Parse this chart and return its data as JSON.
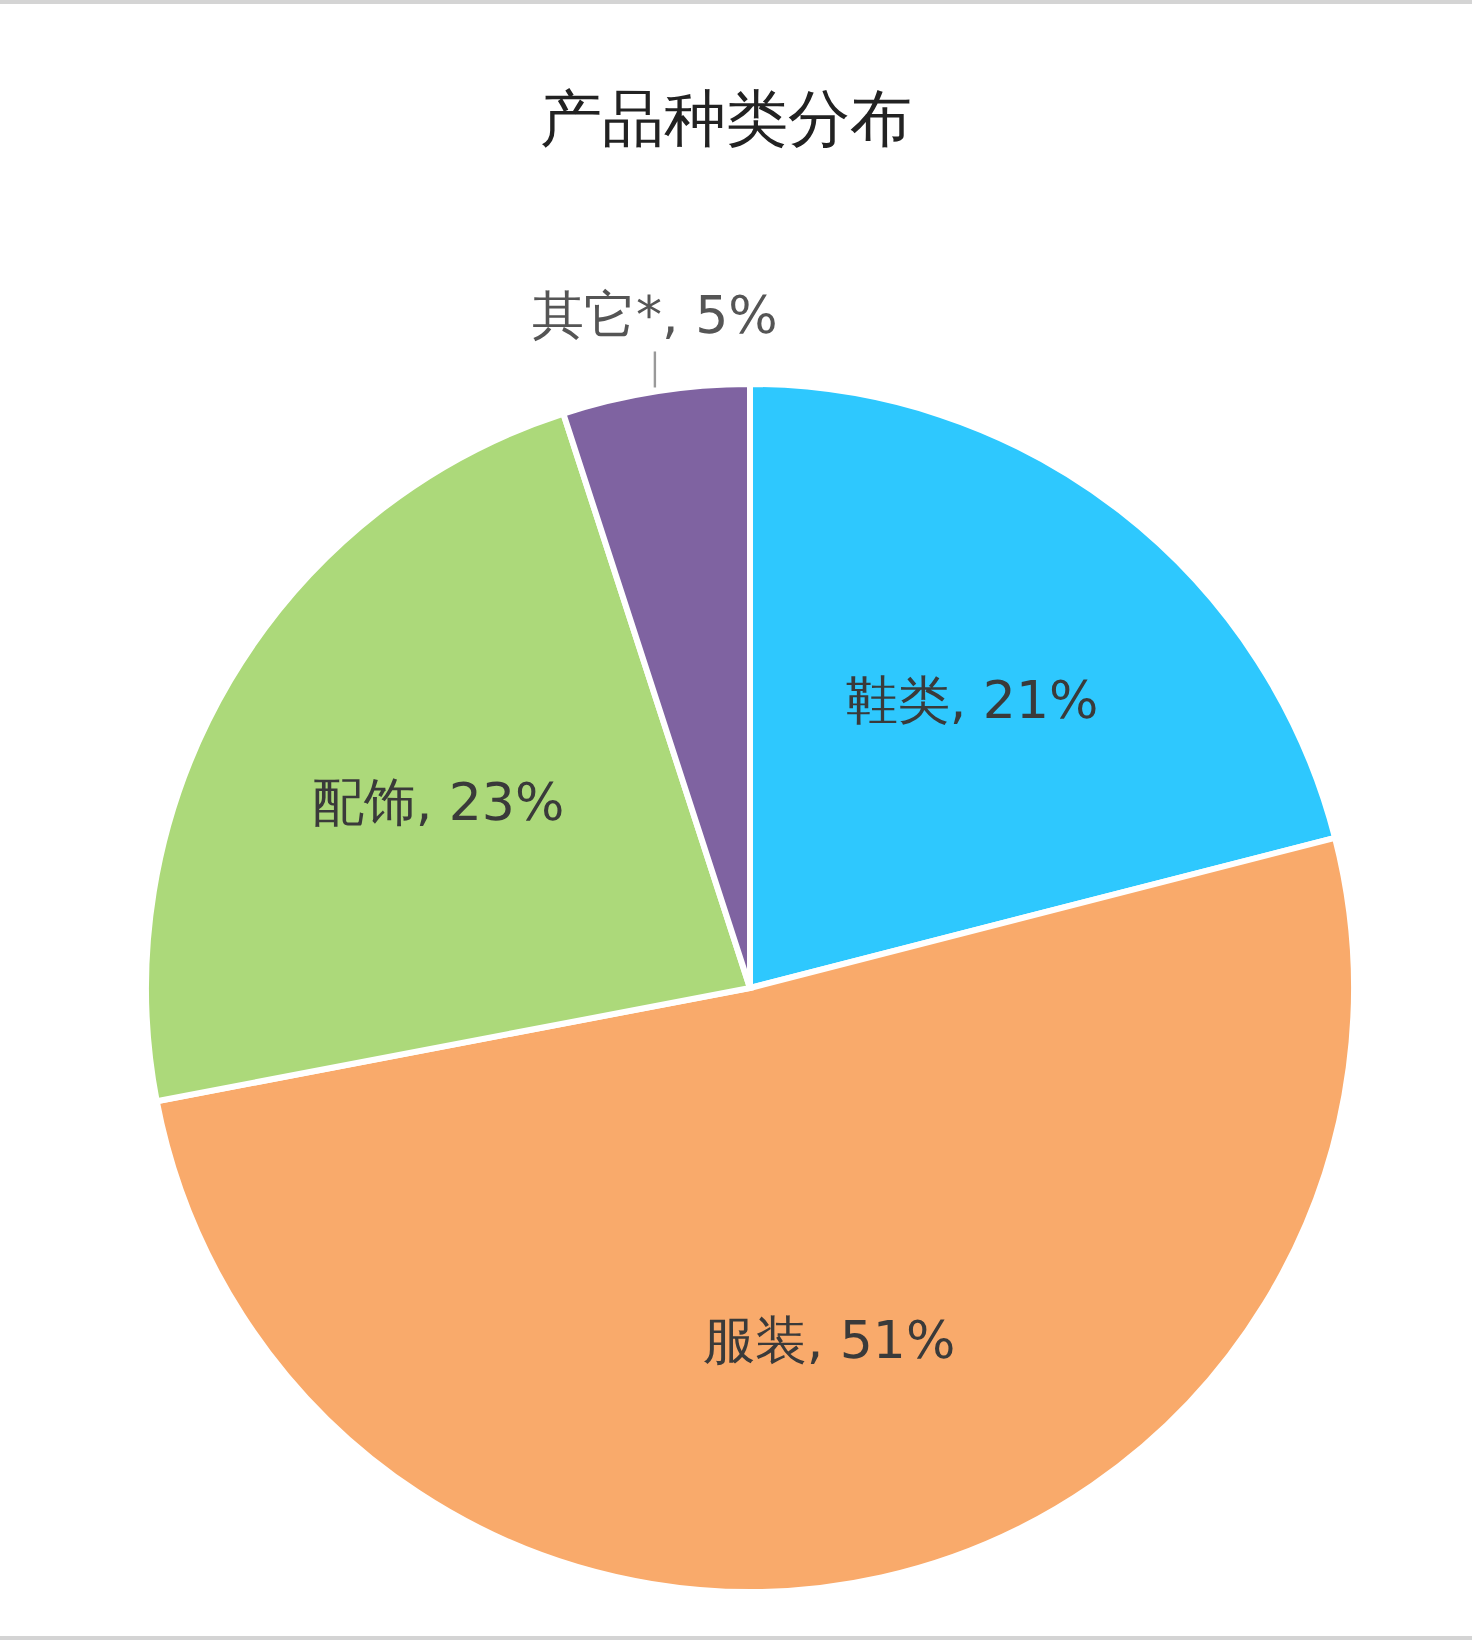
{
  "chart_data": {
    "type": "pie",
    "title": "产品种类分布",
    "categories": [
      "鞋类",
      "服装",
      "配饰",
      "其它*"
    ],
    "values": [
      21,
      51,
      23,
      5
    ],
    "colors": [
      "#2ec8fe",
      "#f9aa6b",
      "#acd97a",
      "#7f63a1"
    ],
    "value_labels": [
      "21%",
      "51%",
      "23%",
      "5%"
    ]
  }
}
